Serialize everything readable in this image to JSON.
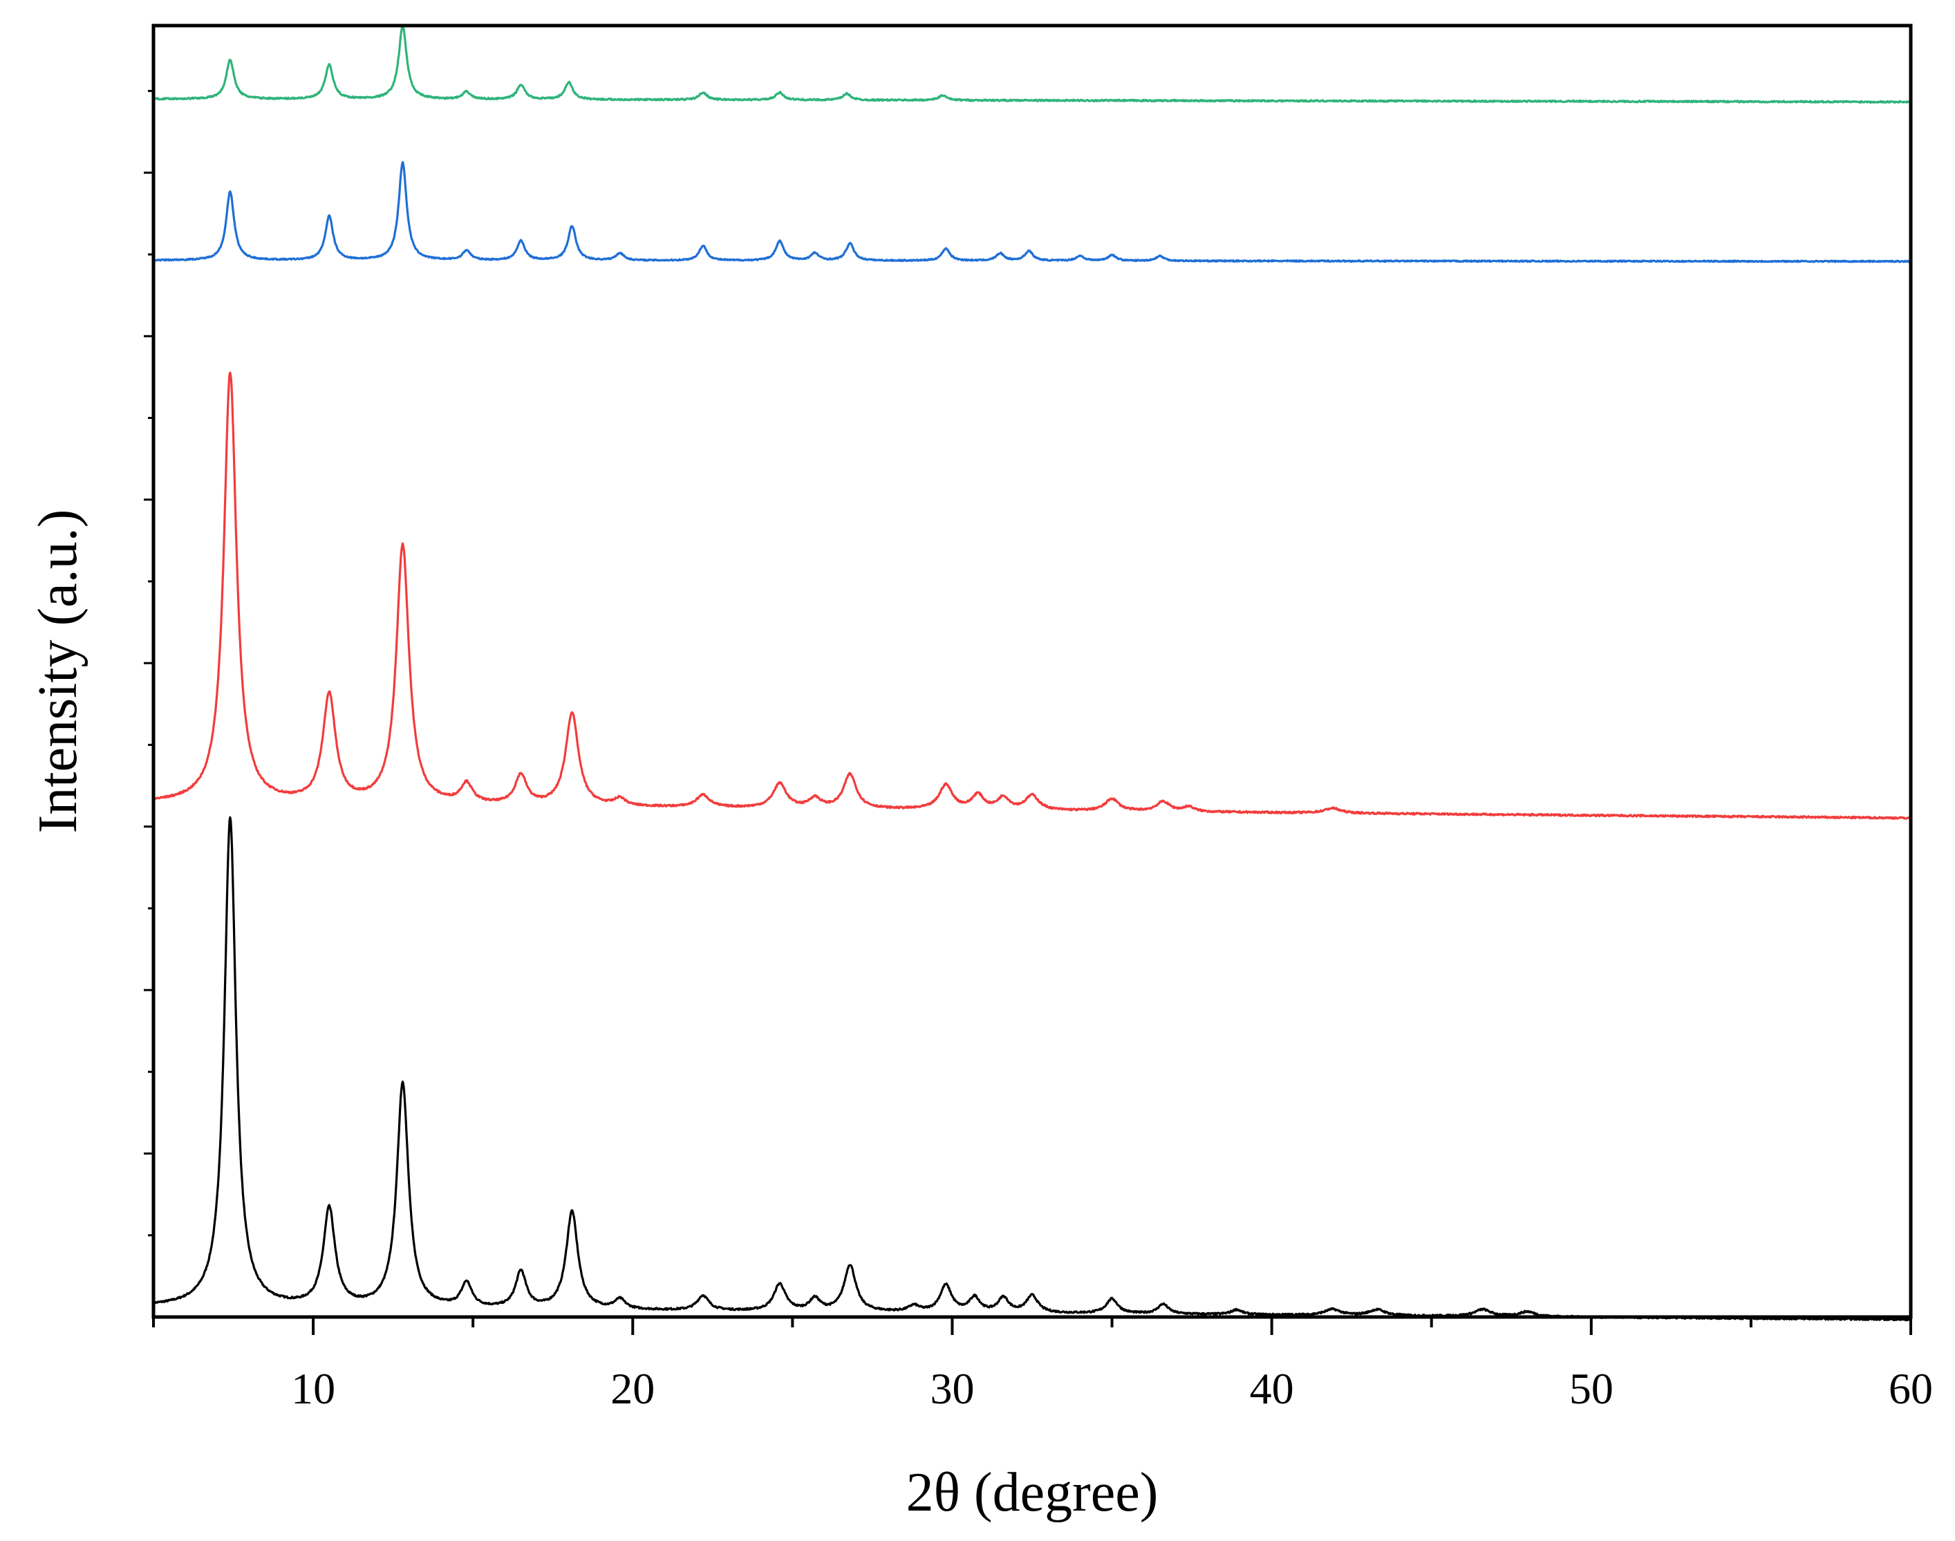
{
  "chart_data": {
    "type": "line",
    "title": "",
    "xlabel": "2θ (degree)",
    "ylabel": "Intensity (a.u.)",
    "xlim": [
      5,
      60
    ],
    "x_ticks": [
      10,
      20,
      30,
      40,
      50,
      60
    ],
    "y_tick_labels_shown": false,
    "grid": false,
    "legend": "none",
    "stacked_offset": true,
    "series": [
      {
        "color": "#000000",
        "baseline": 0,
        "slope": -0.25,
        "noise": 0.35,
        "peaks": [
          [
            7.4,
            100,
            0.22
          ],
          [
            10.5,
            20,
            0.22
          ],
          [
            12.8,
            46,
            0.22
          ],
          [
            14.8,
            5,
            0.2
          ],
          [
            16.5,
            7.5,
            0.2
          ],
          [
            18.1,
            20,
            0.22
          ],
          [
            19.6,
            2,
            0.2
          ],
          [
            22.2,
            3,
            0.22
          ],
          [
            24.6,
            5.5,
            0.22
          ],
          [
            25.7,
            2.5,
            0.2
          ],
          [
            26.8,
            9.5,
            0.22
          ],
          [
            28.8,
            1.2,
            0.2
          ],
          [
            29.8,
            5.5,
            0.22
          ],
          [
            30.7,
            3,
            0.2
          ],
          [
            31.6,
            3,
            0.2
          ],
          [
            32.5,
            3.5,
            0.22
          ],
          [
            35.0,
            3,
            0.22
          ],
          [
            36.6,
            2,
            0.2
          ],
          [
            38.9,
            1,
            0.2
          ],
          [
            41.9,
            1.2,
            0.3
          ],
          [
            43.3,
            1.2,
            0.3
          ],
          [
            46.6,
            1.4,
            0.3
          ],
          [
            48.0,
            1,
            0.3
          ]
        ]
      },
      {
        "color": "#f23c3c",
        "baseline": 103,
        "slope": -0.3,
        "noise": 0.35,
        "peaks": [
          [
            7.4,
            88,
            0.24
          ],
          [
            10.5,
            22,
            0.24
          ],
          [
            12.8,
            53,
            0.24
          ],
          [
            14.8,
            4,
            0.22
          ],
          [
            16.5,
            6,
            0.22
          ],
          [
            18.1,
            19,
            0.24
          ],
          [
            19.6,
            1.5,
            0.2
          ],
          [
            22.2,
            2.5,
            0.25
          ],
          [
            24.6,
            5,
            0.25
          ],
          [
            25.7,
            2,
            0.22
          ],
          [
            26.8,
            7,
            0.24
          ],
          [
            29.8,
            5,
            0.25
          ],
          [
            30.8,
            3,
            0.22
          ],
          [
            31.6,
            2.5,
            0.22
          ],
          [
            32.5,
            3,
            0.25
          ],
          [
            35.0,
            2.5,
            0.25
          ],
          [
            36.6,
            2,
            0.25
          ],
          [
            37.4,
            1,
            0.2
          ],
          [
            41.9,
            1,
            0.3
          ]
        ]
      },
      {
        "color": "#1f6fd6",
        "baseline": 214,
        "slope": -0.02,
        "noise": 0.25,
        "peaks": [
          [
            7.4,
            14,
            0.15
          ],
          [
            10.5,
            9,
            0.15
          ],
          [
            12.8,
            20,
            0.15
          ],
          [
            14.8,
            2,
            0.15
          ],
          [
            16.5,
            4,
            0.15
          ],
          [
            18.1,
            7,
            0.15
          ],
          [
            19.6,
            1.5,
            0.15
          ],
          [
            22.2,
            3,
            0.15
          ],
          [
            24.6,
            4,
            0.15
          ],
          [
            25.7,
            1.5,
            0.15
          ],
          [
            26.8,
            3.5,
            0.15
          ],
          [
            29.8,
            2.5,
            0.15
          ],
          [
            31.5,
            1.5,
            0.15
          ],
          [
            32.4,
            2,
            0.15
          ],
          [
            34.0,
            1,
            0.15
          ],
          [
            35.0,
            1.2,
            0.15
          ],
          [
            36.5,
            1,
            0.15
          ]
        ]
      },
      {
        "color": "#2fb47a",
        "baseline": 247,
        "slope": -0.06,
        "noise": 0.3,
        "peaks": [
          [
            7.4,
            8,
            0.15
          ],
          [
            10.5,
            7,
            0.15
          ],
          [
            12.8,
            15,
            0.15
          ],
          [
            14.8,
            1.5,
            0.15
          ],
          [
            16.5,
            3,
            0.15
          ],
          [
            18.0,
            3.5,
            0.15
          ],
          [
            22.2,
            1.5,
            0.15
          ],
          [
            24.6,
            1.5,
            0.15
          ],
          [
            26.7,
            1.3,
            0.15
          ],
          [
            29.7,
            1,
            0.15
          ]
        ]
      }
    ]
  }
}
